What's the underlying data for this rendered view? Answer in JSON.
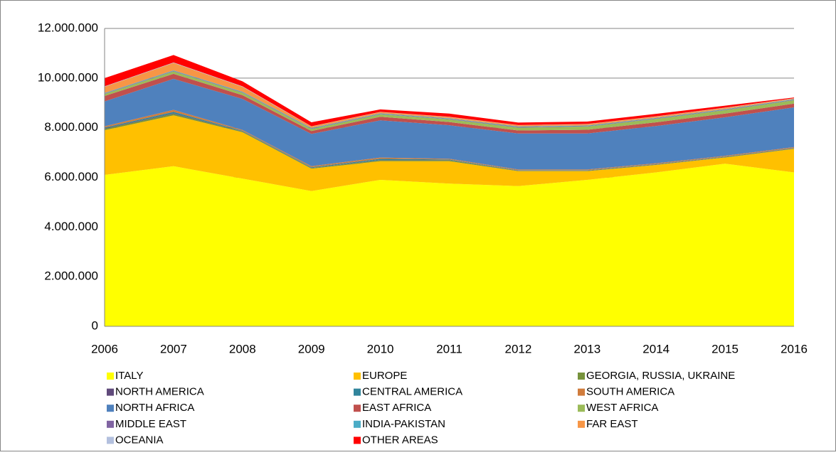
{
  "chart_data": {
    "type": "stacked-area",
    "categories": [
      "2006",
      "2007",
      "2008",
      "2009",
      "2010",
      "2011",
      "2012",
      "2013",
      "2014",
      "2015",
      "2016"
    ],
    "ylim": [
      0,
      12000000
    ],
    "yticks": [
      {
        "value": 0,
        "label": "0"
      },
      {
        "value": 2000000,
        "label": "2.000.000"
      },
      {
        "value": 4000000,
        "label": "4.000.000"
      },
      {
        "value": 6000000,
        "label": "6.000.000"
      },
      {
        "value": 8000000,
        "label": "8.000.000"
      },
      {
        "value": 10000000,
        "label": "10.000.000"
      },
      {
        "value": 12000000,
        "label": "12.000.000"
      }
    ],
    "grid": true,
    "legend": "bottom",
    "series": [
      {
        "name": "ITALY",
        "color": "#ffff00",
        "values": [
          6100000,
          6450000,
          5950000,
          5450000,
          5900000,
          5750000,
          5650000,
          5900000,
          6200000,
          6550000,
          6200000
        ]
      },
      {
        "name": "EUROPE",
        "color": "#ffc000",
        "values": [
          1800000,
          2050000,
          1870000,
          900000,
          750000,
          900000,
          600000,
          350000,
          300000,
          250000,
          950000
        ]
      },
      {
        "name": "GEORGIA, RUSSIA, UKRAINE",
        "color": "#77933c",
        "values": [
          60000,
          60000,
          30000,
          30000,
          40000,
          40000,
          20000,
          20000,
          20000,
          20000,
          20000
        ]
      },
      {
        "name": "NORTH AMERICA",
        "color": "#604a7b",
        "values": [
          20000,
          20000,
          10000,
          10000,
          10000,
          10000,
          10000,
          10000,
          10000,
          10000,
          10000
        ]
      },
      {
        "name": "CENTRAL AMERICA",
        "color": "#31859c",
        "values": [
          30000,
          60000,
          20000,
          20000,
          50000,
          20000,
          10000,
          10000,
          10000,
          10000,
          10000
        ]
      },
      {
        "name": "SOUTH AMERICA",
        "color": "#d07c3c",
        "values": [
          50000,
          80000,
          30000,
          40000,
          50000,
          30000,
          30000,
          30000,
          30000,
          30000,
          30000
        ]
      },
      {
        "name": "NORTH AFRICA",
        "color": "#4f81bd",
        "values": [
          1000000,
          1250000,
          1250000,
          1300000,
          1500000,
          1350000,
          1450000,
          1450000,
          1500000,
          1550000,
          1600000
        ]
      },
      {
        "name": "EAST AFRICA",
        "color": "#c0504d",
        "values": [
          220000,
          200000,
          150000,
          120000,
          140000,
          130000,
          120000,
          150000,
          150000,
          150000,
          150000
        ]
      },
      {
        "name": "WEST AFRICA",
        "color": "#9bbb59",
        "values": [
          80000,
          100000,
          100000,
          80000,
          100000,
          110000,
          120000,
          130000,
          140000,
          140000,
          140000
        ]
      },
      {
        "name": "MIDDLE EAST",
        "color": "#8064a2",
        "values": [
          20000,
          20000,
          20000,
          20000,
          20000,
          20000,
          20000,
          20000,
          20000,
          20000,
          20000
        ]
      },
      {
        "name": "INDIA-PAKISTAN",
        "color": "#4bacc6",
        "values": [
          20000,
          20000,
          20000,
          20000,
          20000,
          20000,
          20000,
          20000,
          20000,
          20000,
          20000
        ]
      },
      {
        "name": "FAR EAST",
        "color": "#f79646",
        "values": [
          250000,
          300000,
          200000,
          60000,
          50000,
          50000,
          50000,
          50000,
          50000,
          50000,
          30000
        ]
      },
      {
        "name": "OCEANIA",
        "color": "#b3c0de",
        "values": [
          20000,
          20000,
          20000,
          10000,
          10000,
          10000,
          10000,
          10000,
          10000,
          10000,
          10000
        ]
      },
      {
        "name": "OTHER AREAS",
        "color": "#ff0000",
        "values": [
          330000,
          300000,
          200000,
          160000,
          100000,
          130000,
          100000,
          100000,
          100000,
          80000,
          30000
        ]
      }
    ]
  }
}
